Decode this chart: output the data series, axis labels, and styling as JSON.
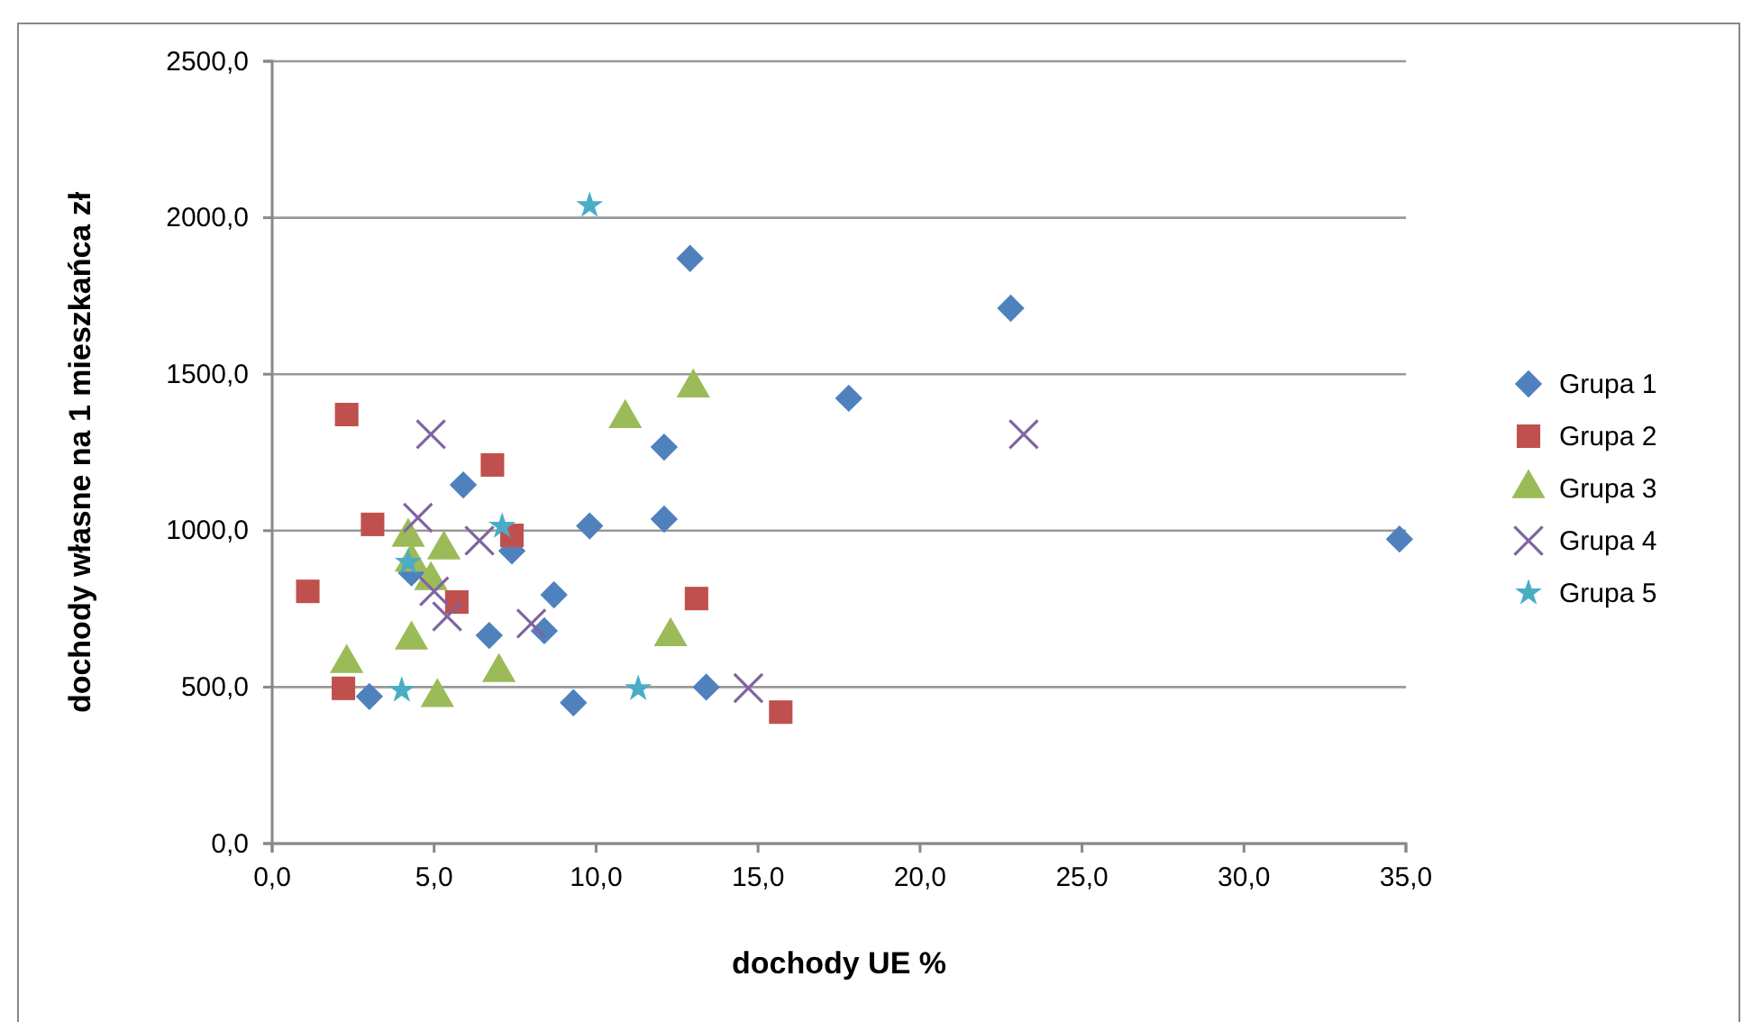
{
  "chart_data": {
    "type": "scatter",
    "xlabel": "dochody UE %",
    "ylabel": "dochody własne na 1 mieszkańca zł",
    "xlim": [
      0,
      35
    ],
    "ylim": [
      0,
      2500
    ],
    "xticks": [
      {
        "value": 0,
        "label": "0,0"
      },
      {
        "value": 5,
        "label": "5,0"
      },
      {
        "value": 10,
        "label": "10,0"
      },
      {
        "value": 15,
        "label": "15,0"
      },
      {
        "value": 20,
        "label": "20,0"
      },
      {
        "value": 25,
        "label": "25,0"
      },
      {
        "value": 30,
        "label": "30,0"
      },
      {
        "value": 35,
        "label": "35,0"
      }
    ],
    "yticks": [
      {
        "value": 0,
        "label": "0,0"
      },
      {
        "value": 500,
        "label": "500,0"
      },
      {
        "value": 1000,
        "label": "1000,0"
      },
      {
        "value": 1500,
        "label": "1500,0"
      },
      {
        "value": 2000,
        "label": "2000,0"
      },
      {
        "value": 2500,
        "label": "2500,0"
      }
    ],
    "grid": "y",
    "legend": "right",
    "series": [
      {
        "name": "Grupa 1",
        "color": "#4f81bd",
        "marker": "diamond",
        "x": [
          3.0,
          4.3,
          5.9,
          6.7,
          7.4,
          8.7,
          8.4,
          9.3,
          9.8,
          12.1,
          12.1,
          12.9,
          13.4,
          17.8,
          22.8,
          34.8
        ],
        "values": [
          470,
          865,
          1146,
          665,
          935,
          795,
          680,
          450,
          1015,
          1267,
          1037,
          1870,
          500,
          1423,
          1711,
          973
        ]
      },
      {
        "name": "Grupa 2",
        "color": "#c0504d",
        "marker": "square",
        "x": [
          1.1,
          2.2,
          2.3,
          3.1,
          5.7,
          6.8,
          7.4,
          13.1,
          15.7
        ],
        "values": [
          806,
          496,
          1371,
          1020,
          772,
          1210,
          985,
          783,
          420
        ]
      },
      {
        "name": "Grupa 3",
        "color": "#9bbb59",
        "marker": "triangle",
        "x": [
          2.3,
          4.2,
          4.3,
          4.3,
          4.9,
          5.1,
          5.3,
          7.0,
          10.9,
          12.3,
          13.0
        ],
        "values": [
          576,
          979,
          900,
          651,
          841,
          467,
          939,
          547,
          1359,
          662,
          1457
        ]
      },
      {
        "name": "Grupa 4",
        "color": "#8064a2",
        "marker": "cross",
        "x": [
          4.5,
          4.9,
          5.0,
          5.4,
          6.4,
          8.0,
          14.7,
          23.2
        ],
        "values": [
          1041,
          1308,
          806,
          726,
          968,
          703,
          497,
          1308
        ]
      },
      {
        "name": "Grupa 5",
        "color": "#4bacc6",
        "marker": "star",
        "x": [
          4.0,
          4.2,
          7.1,
          9.8,
          11.3
        ],
        "values": [
          490,
          899,
          1014,
          2039,
          495
        ]
      }
    ]
  }
}
